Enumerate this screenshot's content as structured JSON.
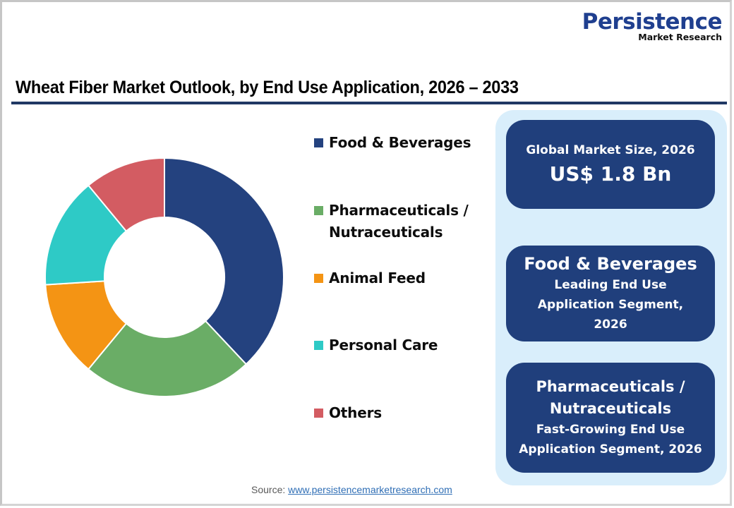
{
  "logo": {
    "main": "Persistence",
    "sub": "Market Research"
  },
  "title": "Wheat Fiber Market Outlook, by End Use Application, 2026 – 2033",
  "chart_data": {
    "type": "pie",
    "subtype": "donut",
    "title": "Wheat Fiber Market Outlook, by End Use Application, 2026 – 2033",
    "categories": [
      "Food & Beverages",
      "Pharmaceuticals / Nutraceuticals",
      "Animal Feed",
      "Personal Care",
      "Others"
    ],
    "values": [
      38,
      23,
      13,
      15,
      11
    ],
    "unit": "% share (estimated from slice angles)",
    "colors": [
      "#24427f",
      "#6aad66",
      "#f49414",
      "#2ecac6",
      "#d35c62"
    ],
    "legend_position": "right",
    "start_angle": "12 o'clock, clockwise"
  },
  "legend": [
    {
      "line1": "Food & Beverages",
      "line2": "",
      "color": "#24427f"
    },
    {
      "line1": "Pharmaceuticals /",
      "line2": "Nutraceuticals",
      "color": "#6aad66"
    },
    {
      "line1": "Animal Feed",
      "line2": "",
      "color": "#f49414"
    },
    {
      "line1": "Personal Care",
      "line2": "",
      "color": "#2ecac6"
    },
    {
      "line1": "Others",
      "line2": "",
      "color": "#d35c62"
    }
  ],
  "cards": {
    "market_size": {
      "label": "Global Market Size, 2026",
      "value": "US$ 1.8 Bn"
    },
    "leading": {
      "segment": "Food & Beverages",
      "line1": "Leading End Use",
      "line2": "Application Segment,",
      "line3": "2026"
    },
    "fastest": {
      "segment_line1": "Pharmaceuticals /",
      "segment_line2": "Nutraceuticals",
      "line1": "Fast-Growing End Use",
      "line2": "Application Segment, 2026"
    }
  },
  "source": {
    "label": "Source:",
    "link": "www.persistencemarketresearch.com"
  },
  "colors": {
    "card_bg": "#203f7c",
    "panel_bg": "#d9eefb",
    "title_rule": "#203864",
    "logo_blue": "#1f3f8f"
  }
}
